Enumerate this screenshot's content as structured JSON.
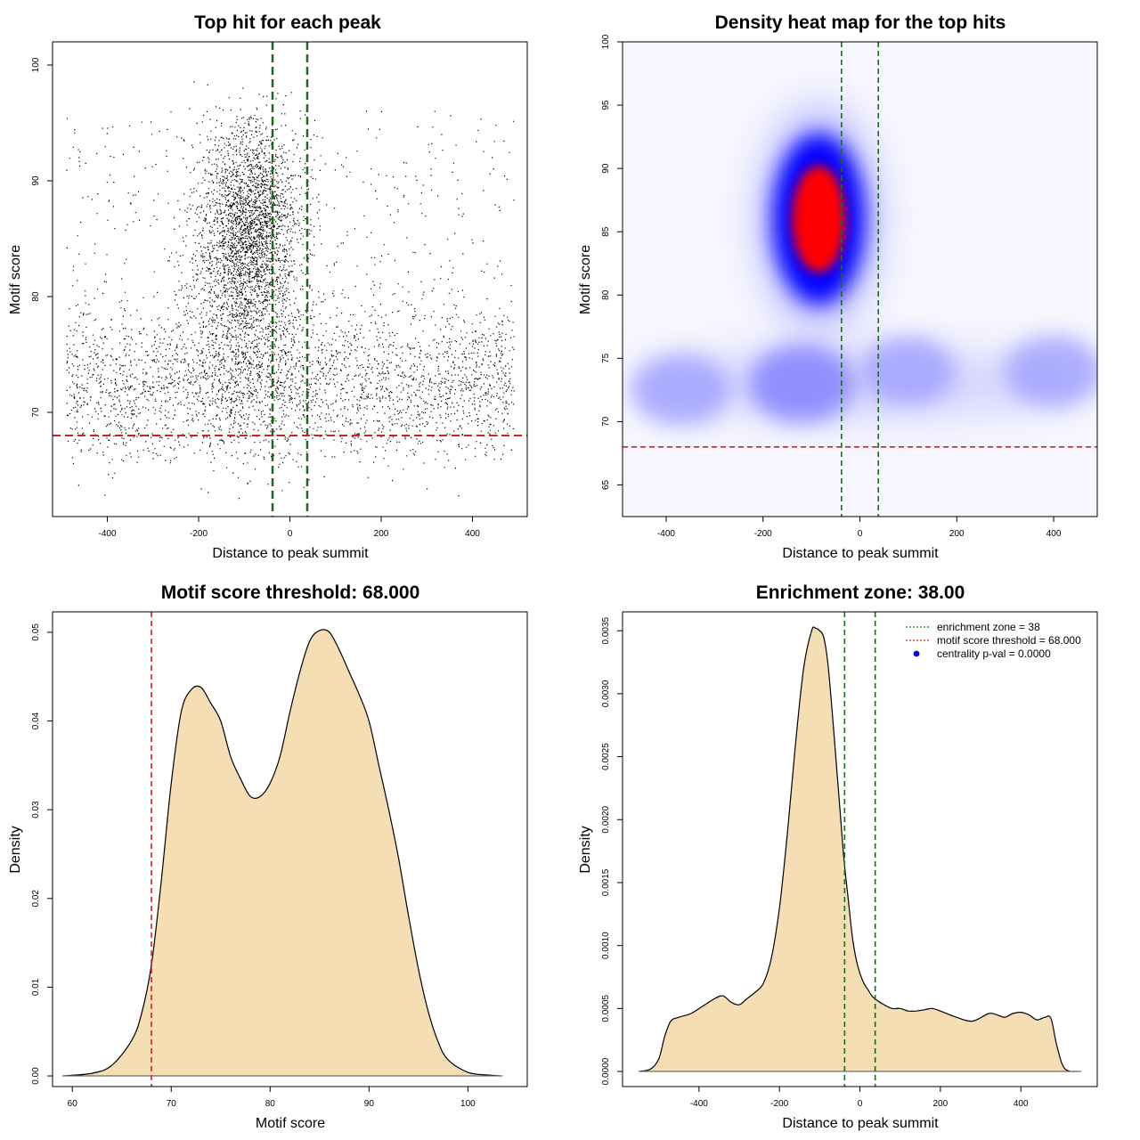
{
  "colors": {
    "green": "#1a6b1a",
    "red": "#d62020",
    "wheat": "#f5deb3",
    "point": "#000000"
  },
  "chart_data": [
    {
      "id": "scatter",
      "type": "scatter",
      "title": "Top hit for each peak",
      "xlabel": "Distance to peak summit",
      "ylabel": "Motif score",
      "xlim": [
        -520,
        520
      ],
      "ylim": [
        61,
        102
      ],
      "xticks": [
        -400,
        -200,
        0,
        200,
        400
      ],
      "yticks": [
        70,
        80,
        90,
        100
      ],
      "vlines": [
        -38,
        38
      ],
      "hline": 68,
      "n_points": 6500,
      "point_seed": 7
    },
    {
      "id": "heatmap",
      "type": "heatmap",
      "title": "Density heat map for the top hits",
      "xlabel": "Distance to peak summit",
      "ylabel": "Motif score",
      "xlim": [
        -490,
        490
      ],
      "ylim": [
        62.5,
        100
      ],
      "xticks": [
        -400,
        -200,
        0,
        200,
        400
      ],
      "yticks": [
        65,
        70,
        75,
        80,
        85,
        90,
        95,
        100
      ],
      "vlines": [
        -38,
        38
      ],
      "hline": 68,
      "density_peaks": [
        {
          "x": -85,
          "y": 86,
          "weight": 1.0
        },
        {
          "x": -120,
          "y": 73,
          "weight": 0.35
        },
        {
          "x": -370,
          "y": 72.5,
          "weight": 0.25
        },
        {
          "x": 400,
          "y": 74,
          "weight": 0.25
        },
        {
          "x": 100,
          "y": 74,
          "weight": 0.2
        }
      ]
    },
    {
      "id": "score-density",
      "type": "area",
      "title": "Motif score threshold: 68.000",
      "xlabel": "Motif score",
      "ylabel": "Density",
      "xlim": [
        58,
        106
      ],
      "ylim": [
        -0.0012,
        0.0523
      ],
      "xticks": [
        60,
        70,
        80,
        90,
        100
      ],
      "yticks": [
        0.0,
        0.01,
        0.02,
        0.03,
        0.04,
        0.05
      ],
      "ytick_labels": [
        "0.00",
        "0.01",
        "0.02",
        "0.03",
        "0.04",
        "0.05"
      ],
      "vline": 68,
      "x": [
        59,
        62,
        64,
        66,
        67,
        68,
        69,
        70,
        71,
        72,
        73,
        74,
        75,
        76,
        77,
        78,
        79,
        80,
        81,
        82,
        83,
        84,
        85,
        86,
        87,
        88,
        89,
        90,
        91,
        92,
        93,
        94,
        95,
        96,
        97,
        98,
        100,
        102,
        103.5
      ],
      "y": [
        0.0,
        0.0003,
        0.0012,
        0.004,
        0.007,
        0.0125,
        0.022,
        0.033,
        0.041,
        0.0435,
        0.0438,
        0.042,
        0.04,
        0.036,
        0.0335,
        0.0315,
        0.0315,
        0.033,
        0.036,
        0.041,
        0.0455,
        0.049,
        0.0502,
        0.05,
        0.048,
        0.0455,
        0.043,
        0.04,
        0.035,
        0.03,
        0.0245,
        0.018,
        0.012,
        0.0072,
        0.0038,
        0.0018,
        0.0004,
        0.0001,
        0.0
      ]
    },
    {
      "id": "distance-density",
      "type": "area",
      "title": "Enrichment zone: 38.00",
      "xlabel": "Distance to peak summit",
      "ylabel": "Density",
      "xlim": [
        -590,
        590
      ],
      "ylim": [
        -0.00012,
        0.00365
      ],
      "xticks": [
        -400,
        -200,
        0,
        200,
        400
      ],
      "yticks": [
        0.0,
        0.0005,
        0.001,
        0.0015,
        0.002,
        0.0025,
        0.003,
        0.0035
      ],
      "ytick_labels": [
        "0.0000",
        "0.0005",
        "0.0010",
        "0.0015",
        "0.0020",
        "0.0025",
        "0.0030",
        "0.0035"
      ],
      "vlines": [
        -38,
        38
      ],
      "x": [
        -550,
        -520,
        -500,
        -485,
        -470,
        -450,
        -420,
        -390,
        -360,
        -340,
        -320,
        -300,
        -280,
        -260,
        -240,
        -220,
        -200,
        -180,
        -160,
        -140,
        -120,
        -110,
        -100,
        -90,
        -80,
        -70,
        -60,
        -50,
        -40,
        -30,
        -20,
        -10,
        0,
        10,
        20,
        30,
        40,
        60,
        80,
        100,
        120,
        140,
        160,
        180,
        200,
        240,
        280,
        320,
        340,
        360,
        380,
        400,
        420,
        440,
        460,
        475,
        490,
        510,
        550
      ],
      "y": [
        0.0,
        2e-05,
        0.0001,
        0.00028,
        0.0004,
        0.00043,
        0.00046,
        0.00052,
        0.00058,
        0.0006,
        0.00055,
        0.00053,
        0.00058,
        0.00063,
        0.0007,
        0.0009,
        0.0013,
        0.0019,
        0.0026,
        0.0032,
        0.0035,
        0.00352,
        0.0035,
        0.00345,
        0.00325,
        0.0029,
        0.0025,
        0.0021,
        0.0017,
        0.0014,
        0.0011,
        0.0009,
        0.00078,
        0.0007,
        0.00065,
        0.0006,
        0.00057,
        0.00053,
        0.0005,
        0.0005,
        0.00048,
        0.00048,
        0.00049,
        0.0005,
        0.00048,
        0.00043,
        0.0004,
        0.00046,
        0.00045,
        0.00043,
        0.00046,
        0.00047,
        0.00045,
        0.00041,
        0.00043,
        0.00042,
        0.0002,
        2e-05,
        0.0
      ],
      "legend": [
        {
          "label": "enrichment zone = 38",
          "kind": "dotted-line",
          "color": "green"
        },
        {
          "label": "motif score threshold = 68.000",
          "kind": "dotted-line",
          "color": "red"
        },
        {
          "label": "centrality p-val = 0.0000",
          "kind": "dot",
          "color": "blue"
        }
      ]
    }
  ]
}
